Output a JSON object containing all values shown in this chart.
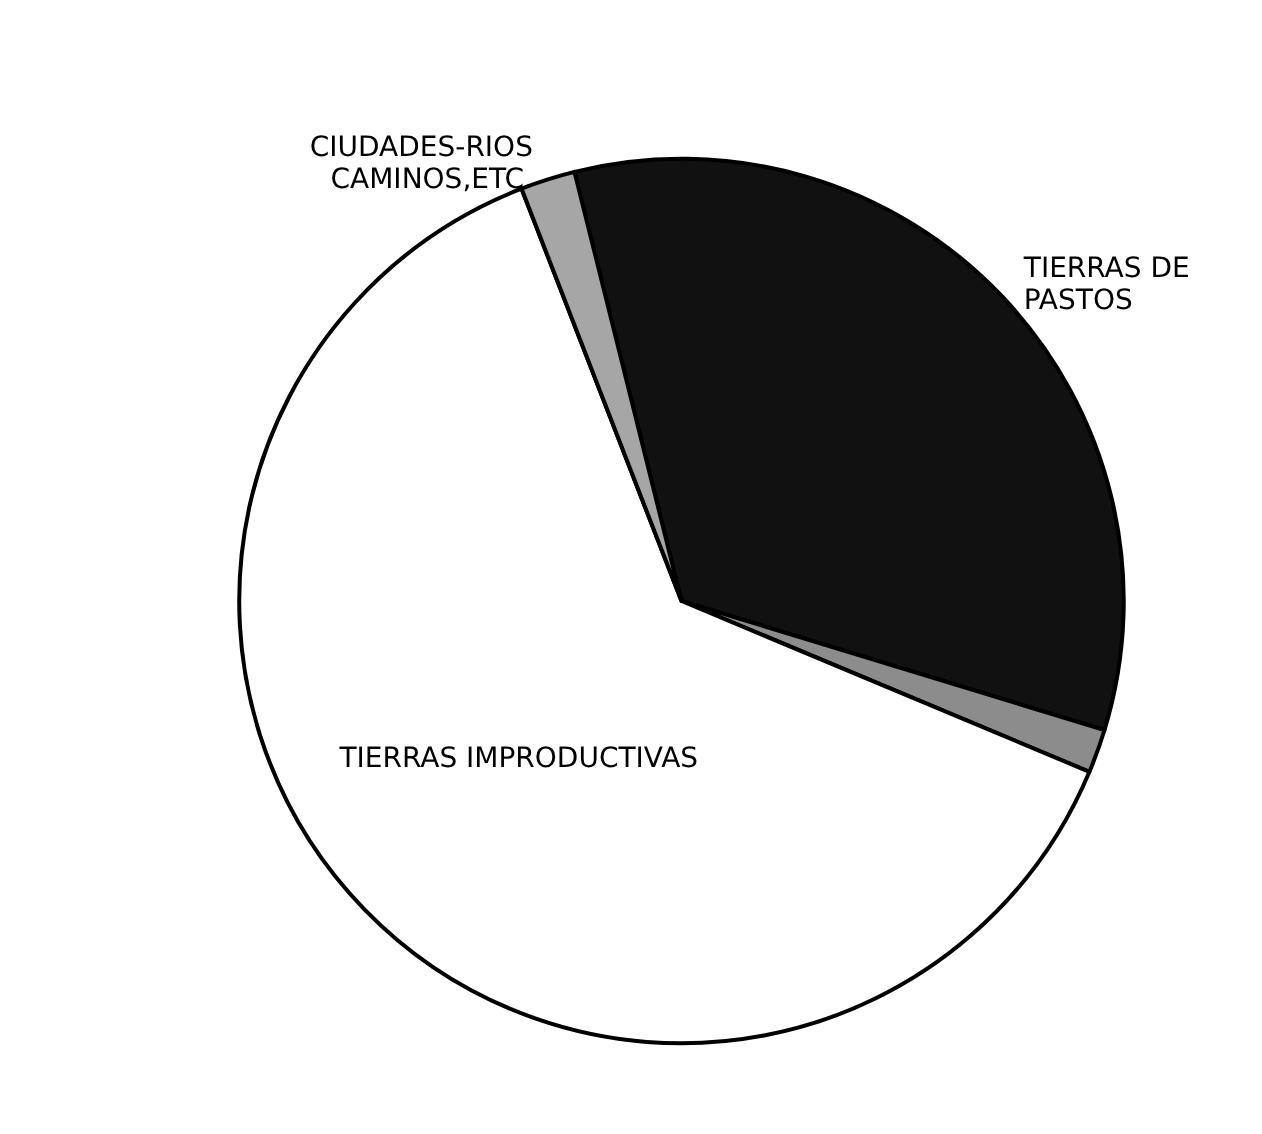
{
  "chart_data": {
    "type": "pie",
    "categories": [
      "TIERRAS DE PASTOS",
      null,
      "TIERRAS IMPRODUCTIVAS",
      "CIUDADES-RIOS CAMINOS,ETC."
    ],
    "values": [
      33.6,
      1.6,
      62.8,
      2.0
    ],
    "colors": [
      "#111111",
      "#8c8c8c",
      "#ffffff",
      "#a6a6a6"
    ],
    "legend": false
  }
}
